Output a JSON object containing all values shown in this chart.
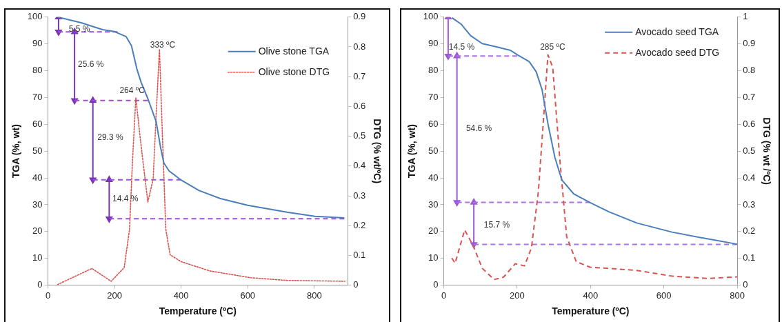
{
  "chart_data": [
    {
      "type": "line",
      "xlabel": "Temperature (ºC)",
      "ylabel": "TGA (%, wt)",
      "y2label": "DTG (% wt/ºC)",
      "xlim": [
        0,
        900
      ],
      "xticks": [
        0,
        200,
        400,
        600,
        800
      ],
      "ylim": [
        0,
        100
      ],
      "yticks": [
        0,
        10,
        20,
        30,
        40,
        50,
        60,
        70,
        80,
        90,
        100
      ],
      "y2lim": [
        0,
        0.9
      ],
      "y2ticks": [
        0,
        0.1,
        0.2,
        0.3,
        0.4,
        0.5,
        0.6,
        0.7,
        0.8,
        0.9
      ],
      "grid": false,
      "legend": "top right",
      "series": [
        {
          "name": "Olive stone TGA",
          "color": "#4a7ebb",
          "line_style": "solid",
          "marker": "none",
          "x": [
            30,
            100,
            164,
            200,
            235,
            251,
            267,
            280,
            300,
            325,
            338,
            348,
            364,
            400,
            454,
            518,
            600,
            718,
            802,
            890
          ],
          "values": [
            100,
            97.9,
            95.3,
            94.6,
            92.7,
            89.3,
            80.7,
            75.6,
            69.6,
            61,
            51.6,
            45.6,
            42.6,
            39.2,
            35.3,
            32.3,
            29.8,
            27.2,
            25.7,
            25.1
          ]
        },
        {
          "name": "Olive stone DTG",
          "color": "#d9534f",
          "axis": "y2",
          "line_style": "dotted",
          "marker": "none",
          "x": [
            29,
            132,
            190,
            229,
            245,
            254,
            264,
            277,
            300,
            316,
            325,
            335,
            344,
            354,
            367,
            400,
            486,
            609,
            718,
            892
          ],
          "values": [
            0.002,
            0.056,
            0.013,
            0.059,
            0.187,
            0.418,
            0.63,
            0.495,
            0.279,
            0.356,
            0.572,
            0.792,
            0.495,
            0.187,
            0.102,
            0.079,
            0.048,
            0.025,
            0.016,
            0.013
          ]
        },
        {
          "type": "line",
          "color": "#9b4fd9",
          "line_style": "dashed",
          "marker": "none",
          "x": [
            30,
            209
          ],
          "values": [
            94.5,
            94.5
          ]
        },
        {
          "type": "line",
          "color": "#9b4fd9",
          "line_style": "dashed",
          "marker": "none",
          "x": [
            80,
            300
          ],
          "values": [
            68.9,
            68.9
          ]
        },
        {
          "type": "line",
          "color": "#9b4fd9",
          "line_style": "dashed",
          "marker": "none",
          "x": [
            135,
            400
          ],
          "values": [
            39.3,
            39.3
          ]
        },
        {
          "type": "line",
          "color": "#9b4fd9",
          "line_style": "dashed",
          "marker": "none",
          "x": [
            184,
            890
          ],
          "values": [
            24.8,
            24.8
          ]
        },
        {
          "type": "line",
          "color": "#7a35b5",
          "line_style": "solid",
          "marker": "triangle",
          "x": [
            32,
            32
          ],
          "values": [
            100,
            94.5
          ]
        },
        {
          "type": "line",
          "color": "#7a35b5",
          "line_style": "solid",
          "marker": "triangle",
          "x": [
            80,
            80
          ],
          "values": [
            94.5,
            68.9
          ]
        },
        {
          "type": "line",
          "color": "#7a35b5",
          "line_style": "solid",
          "marker": "triangle",
          "x": [
            135,
            135
          ],
          "values": [
            68.9,
            39.3
          ]
        },
        {
          "type": "line",
          "color": "#7a35b5",
          "line_style": "solid",
          "marker": "triangle",
          "x": [
            184,
            184
          ],
          "values": [
            39.3,
            24.8
          ]
        }
      ],
      "annotations": [
        "5.5 %",
        "25.6 %",
        "29.3 %",
        "14.4 %",
        "264 ºC",
        "333 ºC"
      ]
    },
    {
      "type": "line",
      "xlabel": "Temperature (ºC)",
      "ylabel": "TGA (%, wt)",
      "y2label": "DTG (% wt /ºC)",
      "xlim": [
        0,
        800
      ],
      "xticks": [
        0,
        200,
        400,
        600,
        800
      ],
      "ylim": [
        0,
        100
      ],
      "yticks": [
        0,
        10,
        20,
        30,
        40,
        50,
        60,
        70,
        80,
        90,
        100
      ],
      "y2lim": [
        0,
        1
      ],
      "y2ticks": [
        0,
        0.1,
        0.2,
        0.3,
        0.4,
        0.5,
        0.6,
        0.7,
        0.8,
        0.9,
        1
      ],
      "grid": false,
      "legend": "top right",
      "series": [
        {
          "name": "Avocado seed TGA",
          "color": "#4a7ebb",
          "line_style": "solid",
          "marker": "none",
          "x": [
            22,
            48,
            73,
            105,
            144,
            182,
            201,
            233,
            252,
            268,
            284,
            303,
            322,
            354,
            399,
            450,
            526,
            622,
            718,
            800
          ],
          "values": [
            99.8,
            97.3,
            93.1,
            90.1,
            88.9,
            87.6,
            85.9,
            83.4,
            79.6,
            72.9,
            60.2,
            47.6,
            39.2,
            34.1,
            30.8,
            27.4,
            23.2,
            19.8,
            17.3,
            15.3
          ]
        },
        {
          "name": "Avocado seed DTG",
          "color": "#d9534f",
          "axis": "y2",
          "line_style": "dashed",
          "marker": "none",
          "x": [
            22,
            31,
            57,
            80,
            105,
            137,
            163,
            195,
            220,
            239,
            258,
            271,
            284,
            297,
            316,
            335,
            361,
            399,
            444,
            526,
            622,
            718,
            800
          ],
          "values": [
            0.101,
            0.082,
            0.206,
            0.148,
            0.063,
            0.021,
            0.03,
            0.08,
            0.072,
            0.139,
            0.35,
            0.602,
            0.859,
            0.813,
            0.476,
            0.181,
            0.088,
            0.067,
            0.063,
            0.055,
            0.034,
            0.025,
            0.031
          ]
        },
        {
          "type": "line",
          "color": "#a874e0",
          "line_style": "dashed",
          "marker": "none",
          "x": [
            12,
            200
          ],
          "values": [
            85.5,
            85.5
          ]
        },
        {
          "type": "line",
          "color": "#a874e0",
          "line_style": "dashed",
          "marker": "none",
          "x": [
            36,
            399
          ],
          "values": [
            30.9,
            30.9
          ]
        },
        {
          "type": "line",
          "color": "#a874e0",
          "line_style": "dashed",
          "marker": "none",
          "x": [
            82,
            800
          ],
          "values": [
            15.2,
            15.2
          ]
        },
        {
          "type": "line",
          "color": "#9b59d6",
          "line_style": "solid",
          "marker": "triangle",
          "x": [
            12,
            12
          ],
          "values": [
            100,
            85.5
          ]
        },
        {
          "type": "line",
          "color": "#9b59d6",
          "line_style": "solid",
          "marker": "triangle",
          "x": [
            36,
            36
          ],
          "values": [
            85.5,
            30.9
          ]
        },
        {
          "type": "line",
          "color": "#9b59d6",
          "line_style": "solid",
          "marker": "triangle",
          "x": [
            82,
            82
          ],
          "values": [
            30.9,
            15.2
          ]
        }
      ],
      "annotations": [
        "14.5 %",
        "54.6 %",
        "15.7 %",
        "285 ºC"
      ]
    }
  ]
}
